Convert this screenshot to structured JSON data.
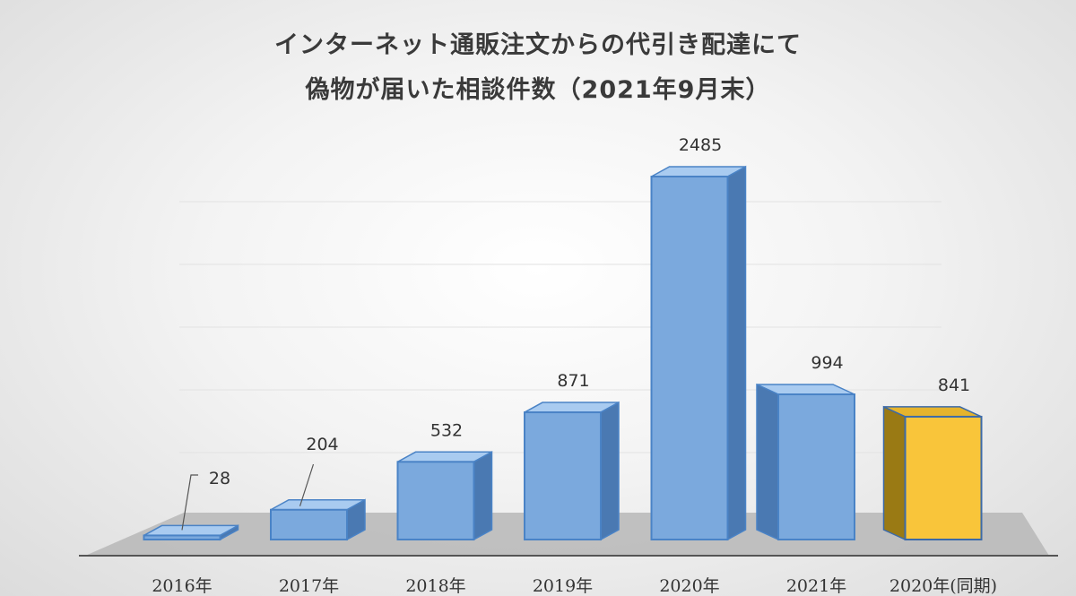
{
  "chart_data": {
    "type": "bar",
    "title_line1": "インターネット通販注文からの代引き配達にて",
    "title_line2": "偽物が届いた相談件数（2021年9月末）",
    "categories": [
      "2016年",
      "2017年",
      "2018年",
      "2019年",
      "2020年",
      "2021年",
      "2020年(同期)"
    ],
    "values": [
      28,
      204,
      532,
      871,
      2485,
      994,
      841
    ],
    "value_labels": [
      "28",
      "204",
      "532",
      "871",
      "2485",
      "994",
      "841"
    ],
    "highlight_index": 6,
    "ylim": [
      0,
      2485
    ],
    "grid": true,
    "colors": {
      "bar_front": "#7ba9dd",
      "bar_side": "#4a79b2",
      "bar_top": "#a9cbf0",
      "bar_edge": "#4a83c6",
      "highlight_front": "#f9c53a",
      "highlight_side": "#9a7a14",
      "highlight_top": "#e6b42c",
      "highlight_edge": "#3c6aa8",
      "floor": "#b7b7b7",
      "axis": "#555555"
    }
  }
}
